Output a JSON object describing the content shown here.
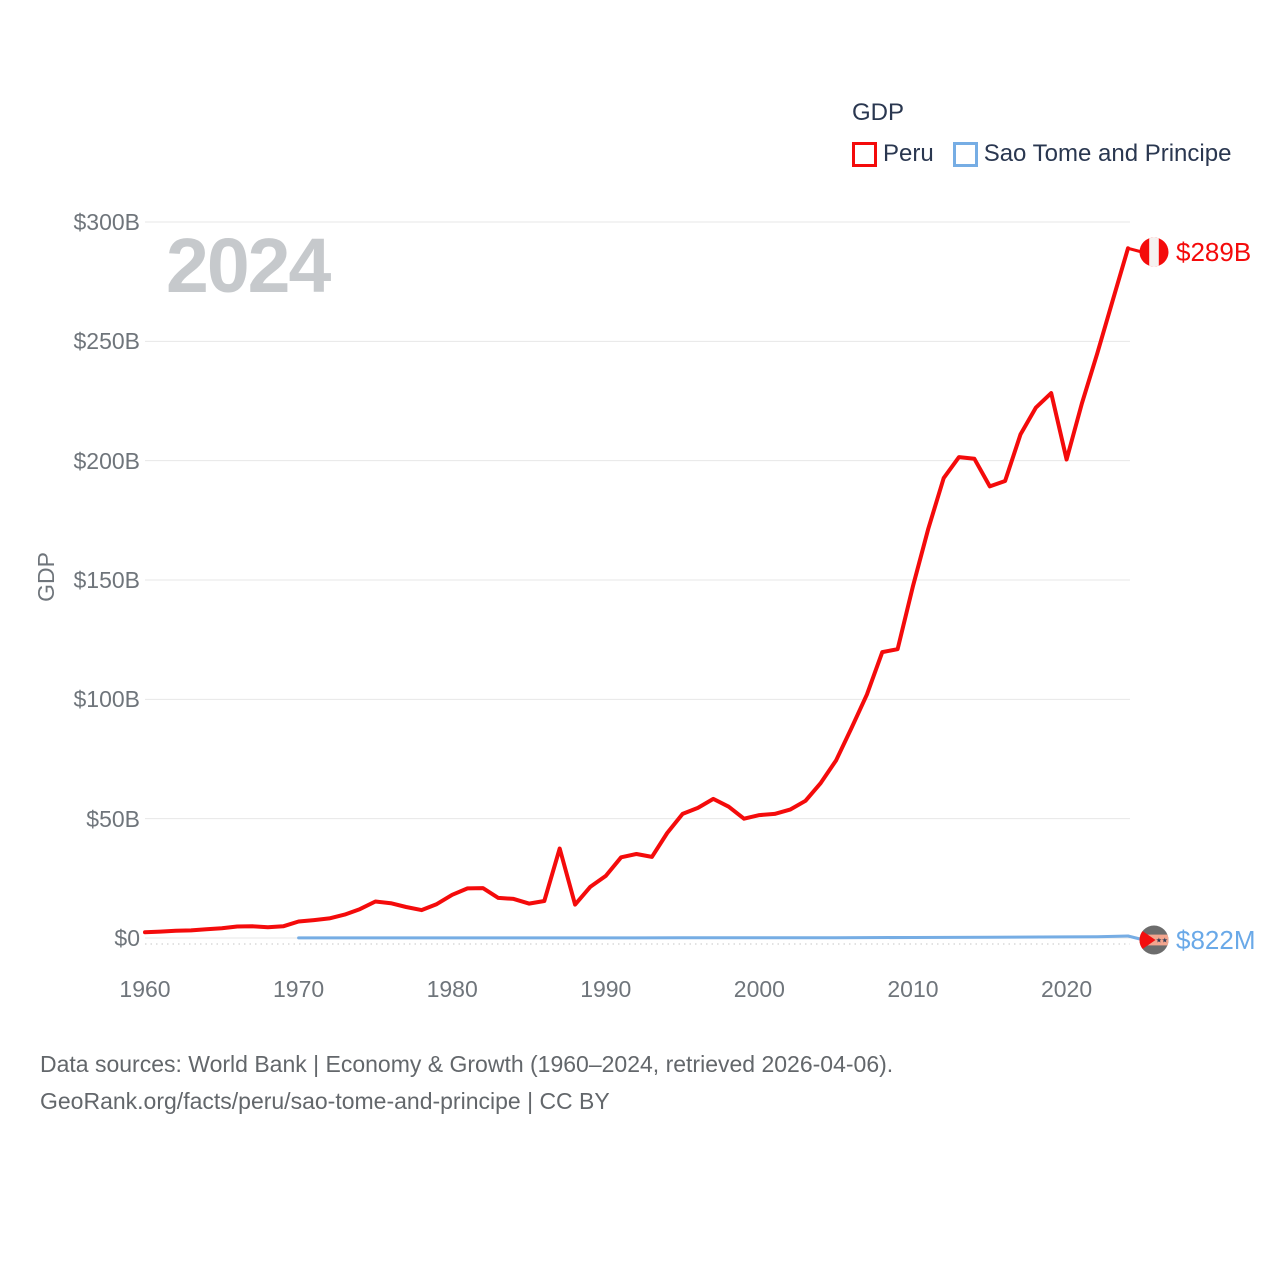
{
  "watermark": "2024",
  "legend": {
    "title": "GDP",
    "items": [
      {
        "label": "Peru",
        "color": "#f40b0b"
      },
      {
        "label": "Sao Tome and Principe",
        "color": "#76ade4"
      }
    ]
  },
  "chart_data": {
    "type": "line",
    "title": "GDP",
    "xlabel": "",
    "ylabel": "GDP",
    "unit": "current US$, billions",
    "xlim": [
      1960,
      2024
    ],
    "ylim": [
      0,
      300
    ],
    "grid": "horizontal",
    "legend_position": "top-right",
    "x_ticks": [
      1960,
      1970,
      1980,
      1990,
      2000,
      2010,
      2020
    ],
    "y_ticks": [
      {
        "value": 0,
        "label": "$0"
      },
      {
        "value": 50,
        "label": "$50B"
      },
      {
        "value": 100,
        "label": "$100B"
      },
      {
        "value": 150,
        "label": "$150B"
      },
      {
        "value": 200,
        "label": "$200B"
      },
      {
        "value": 250,
        "label": "$250B"
      },
      {
        "value": 300,
        "label": "$300B"
      }
    ],
    "series": [
      {
        "name": "Peru",
        "color": "#f40b0b",
        "x": [
          1960,
          1961,
          1962,
          1963,
          1964,
          1965,
          1966,
          1967,
          1968,
          1969,
          1970,
          1971,
          1972,
          1973,
          1974,
          1975,
          1976,
          1977,
          1978,
          1979,
          1980,
          1981,
          1982,
          1983,
          1984,
          1985,
          1986,
          1987,
          1988,
          1989,
          1990,
          1991,
          1992,
          1993,
          1994,
          1995,
          1996,
          1997,
          1998,
          1999,
          2000,
          2001,
          2002,
          2003,
          2004,
          2005,
          2006,
          2007,
          2008,
          2009,
          2010,
          2011,
          2012,
          2013,
          2014,
          2015,
          2016,
          2017,
          2018,
          2019,
          2020,
          2021,
          2022,
          2023,
          2024
        ],
        "values": [
          2.4,
          2.7,
          3.0,
          3.2,
          3.7,
          4.1,
          4.8,
          4.9,
          4.5,
          4.9,
          6.9,
          7.5,
          8.2,
          9.8,
          12.1,
          15.3,
          14.6,
          13.0,
          11.7,
          14.2,
          18.1,
          20.8,
          20.9,
          16.8,
          16.4,
          14.4,
          15.5,
          37.5,
          14.0,
          21.5,
          26.0,
          33.8,
          35.2,
          34.0,
          44.0,
          52.0,
          54.5,
          58.3,
          55.0,
          50.0,
          51.5,
          52.0,
          53.8,
          57.5,
          65.0,
          74.5,
          88.0,
          102.0,
          119.8,
          121.0,
          147.5,
          171.5,
          192.7,
          201.5,
          200.8,
          189.2,
          191.5,
          211.0,
          222.2,
          228.3,
          200.5,
          224.0,
          245.0,
          267.0,
          289.0
        ]
      },
      {
        "name": "Sao Tome and Principe",
        "color": "#76ade4",
        "x": [
          1970,
          1972,
          1975,
          1978,
          1980,
          1985,
          1990,
          1995,
          2000,
          2005,
          2010,
          2015,
          2020,
          2022,
          2024
        ],
        "values": [
          0.03,
          0.032,
          0.042,
          0.045,
          0.047,
          0.039,
          0.059,
          0.065,
          0.073,
          0.126,
          0.197,
          0.318,
          0.472,
          0.546,
          0.822
        ]
      }
    ],
    "end_labels": [
      {
        "series": "Peru",
        "text": "$289B",
        "color": "#f40b0b",
        "flag": "peru-flag-icon"
      },
      {
        "series": "Sao Tome and Principe",
        "text": "$822M",
        "color": "#6aa9e8",
        "flag": "sao-tome-and-principe-flag-icon"
      }
    ]
  },
  "footer": {
    "line1": "Data sources: World Bank | Economy & Growth (1960–2024, retrieved 2026-04-06).",
    "line2": "GeoRank.org/facts/peru/sao-tome-and-principe | CC BY"
  }
}
